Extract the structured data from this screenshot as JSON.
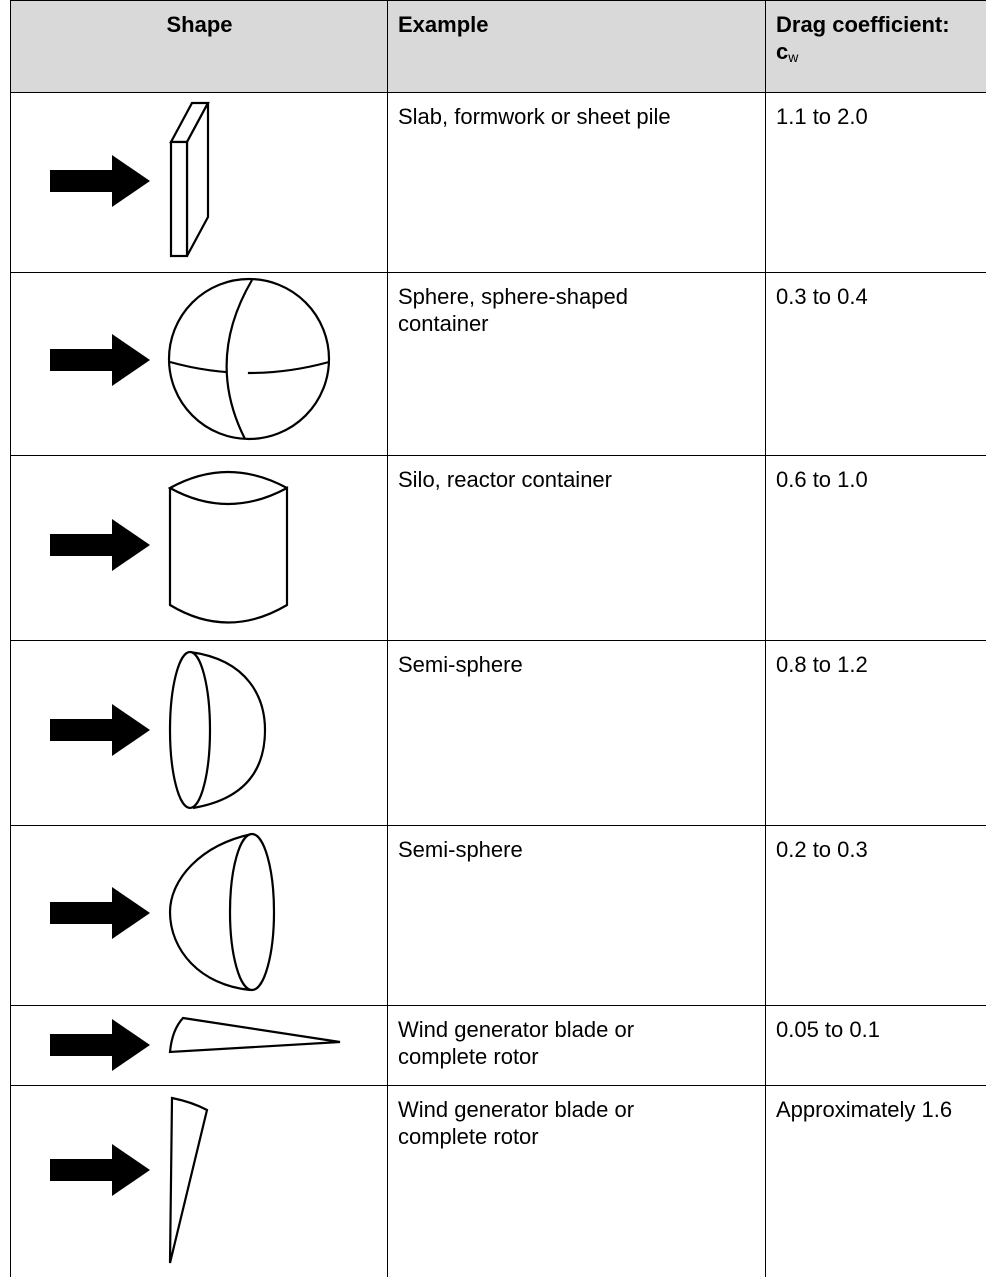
{
  "table": {
    "header": [
      "Shape",
      "Example",
      "Drag coefficient:"
    ],
    "header_symbol": "c",
    "header_symbol_subscript": "w",
    "rows": [
      [
        "Slab, formwork or sheet pile",
        "1.1 to 2.0"
      ],
      [
        "Sphere, sphere-shaped container",
        "0.3 to 0.4"
      ],
      [
        "Silo, reactor container",
        "0.6 to 1.0"
      ],
      [
        "Semi-sphere",
        "0.8 to 1.2"
      ],
      [
        "Semi-sphere",
        "0.2 to 0.3"
      ],
      [
        "Wind generator blade or complete rotor",
        "0.05 to 0.1"
      ],
      [
        "Wind generator blade or complete rotor",
        "Approximately 1.6"
      ]
    ]
  }
}
